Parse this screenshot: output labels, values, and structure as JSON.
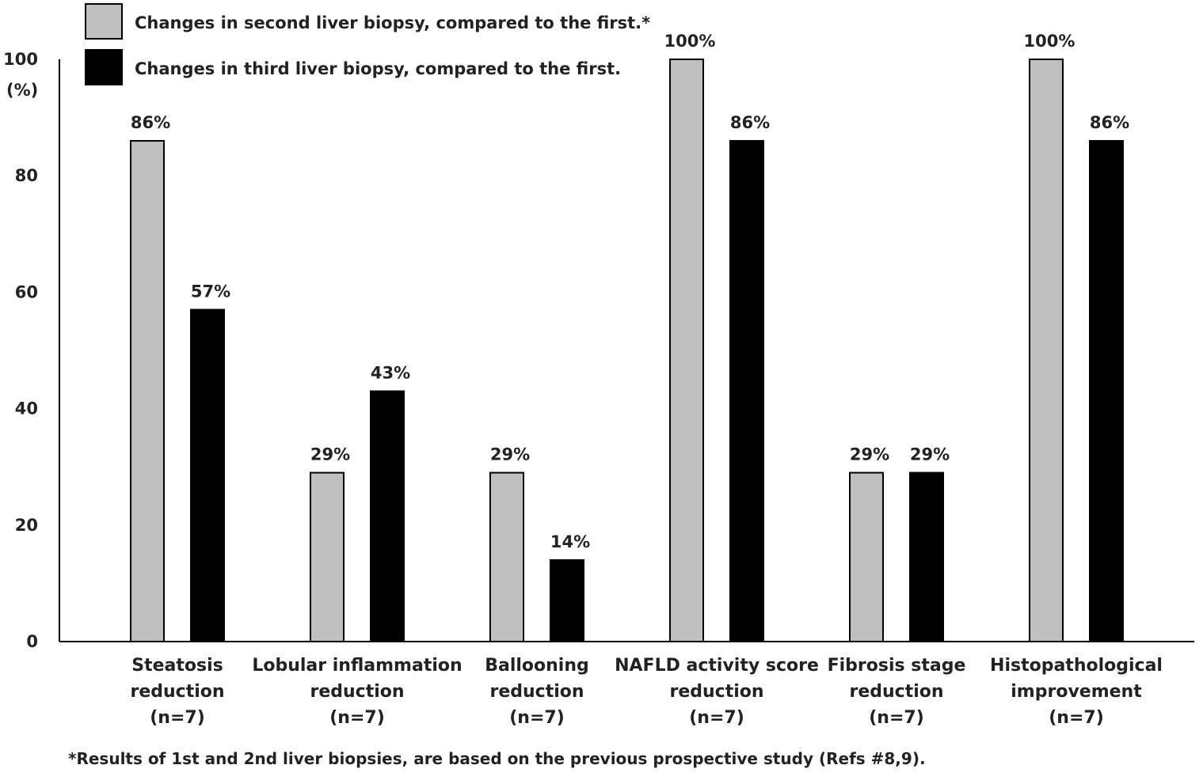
{
  "chart_data": {
    "type": "bar",
    "title": "",
    "xlabel": "",
    "ylabel": "(%)",
    "ylim": [
      0,
      100
    ],
    "yticks": [
      0,
      20,
      40,
      60,
      80,
      100
    ],
    "grid": false,
    "legend_position": "top-left",
    "categories": [
      [
        "Steatosis",
        "reduction",
        "(n=7)"
      ],
      [
        "Lobular inflammation",
        "reduction",
        "(n=7)"
      ],
      [
        "Ballooning",
        "reduction",
        "(n=7)"
      ],
      [
        "NAFLD activity score",
        "reduction",
        "(n=7)"
      ],
      [
        "Fibrosis stage",
        "reduction",
        "(n=7)"
      ],
      [
        "Histopathological",
        "improvement",
        "(n=7)"
      ]
    ],
    "series": [
      {
        "name": "Changes in second liver biopsy, compared to  the first.*",
        "color": "#bfbfbf",
        "values": [
          86,
          29,
          29,
          100,
          29,
          100
        ],
        "labels": [
          "86%",
          "29%",
          "29%",
          "100%",
          "29%",
          "100%"
        ]
      },
      {
        "name": "Changes in third liver biopsy, compared to the first.",
        "color": "#000000",
        "values": [
          57,
          43,
          14,
          86,
          29,
          86
        ],
        "labels": [
          "57%",
          "43%",
          "14%",
          "86%",
          "29%",
          "86%"
        ]
      }
    ],
    "footnote": "*Results of 1st and 2nd liver biopsies, are based on the previous prospective study (Refs #8,9)."
  }
}
